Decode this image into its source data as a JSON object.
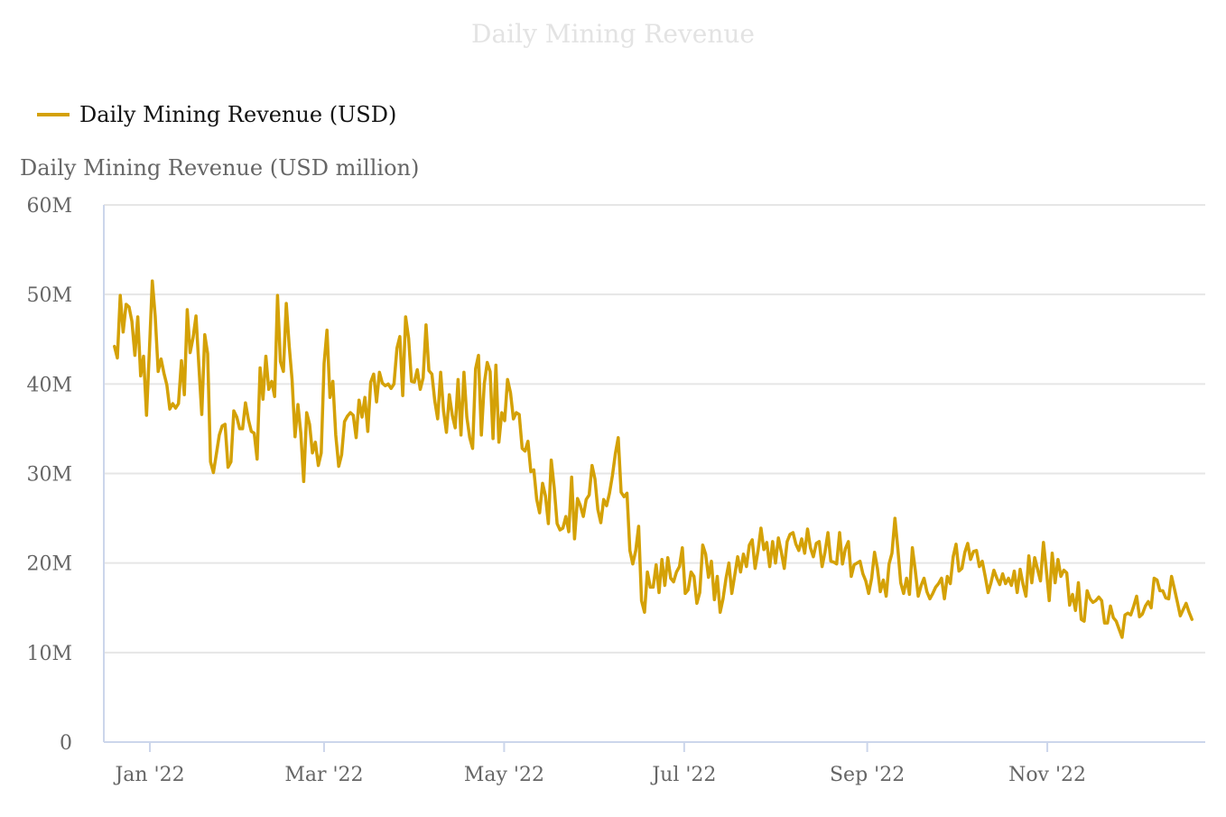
{
  "chart_data": {
    "type": "line",
    "title": "Daily Mining Revenue",
    "ylabel": "Daily Mining Revenue (USD million)",
    "xlabel": "",
    "legend": {
      "position": "top-left",
      "entries": [
        "Daily Mining Revenue (USD)"
      ]
    },
    "colors": {
      "series": "#d4a106",
      "grid": "#e6e6e6",
      "axis": "#ccd6eb"
    },
    "grid": true,
    "ylim": [
      0,
      60
    ],
    "yticks": [
      0,
      10,
      20,
      30,
      40,
      50,
      60
    ],
    "ytick_labels": [
      "0",
      "10M",
      "20M",
      "30M",
      "40M",
      "50M",
      "60M"
    ],
    "xlim_days_from_2022_01_01": [
      -15.6,
      357.5
    ],
    "xticks_days_from_2022_01_01": [
      0,
      59,
      120,
      181,
      243,
      304
    ],
    "xtick_labels": [
      "Jan '22",
      "Mar '22",
      "May '22",
      "Jul '22",
      "Sep '22",
      "Nov '22"
    ],
    "x_start": "2021-12-20",
    "x_end": "2022-12-20",
    "x_start_day": -12,
    "x_end_day": 353,
    "series": [
      {
        "name": "Daily Mining Revenue (USD)",
        "unit": "USD million",
        "values": [
          44.2,
          42.9,
          49.9,
          45.8,
          48.9,
          48.6,
          47.0,
          43.2,
          47.5,
          40.9,
          43.1,
          36.5,
          43.8,
          51.5,
          47.6,
          41.4,
          42.8,
          41.2,
          39.9,
          37.2,
          37.8,
          37.3,
          37.8,
          42.6,
          38.8,
          48.3,
          43.5,
          45.2,
          47.6,
          42.0,
          36.6,
          45.5,
          43.4,
          31.3,
          30.1,
          32.2,
          34.3,
          35.3,
          35.5,
          30.7,
          31.3,
          37.0,
          36.3,
          35.0,
          35.0,
          37.9,
          36.0,
          34.7,
          34.5,
          31.6,
          41.8,
          38.3,
          43.1,
          39.4,
          40.3,
          38.6,
          49.9,
          42.5,
          41.4,
          49.0,
          44.3,
          40.5,
          34.1,
          37.7,
          34.5,
          29.1,
          36.8,
          35.5,
          32.3,
          33.5,
          30.9,
          32.3,
          42.3,
          46.0,
          38.5,
          40.3,
          34.3,
          30.8,
          32.1,
          35.8,
          36.4,
          36.8,
          36.5,
          34.0,
          38.2,
          36.3,
          38.5,
          34.7,
          40.2,
          41.1,
          38.0,
          41.3,
          40.1,
          39.8,
          40.0,
          39.5,
          40.0,
          44.0,
          45.3,
          38.7,
          47.5,
          45.1,
          40.3,
          40.2,
          41.6,
          39.4,
          40.7,
          46.6,
          41.5,
          41.1,
          38.1,
          36.1,
          41.3,
          37.0,
          34.6,
          38.8,
          36.5,
          35.1,
          40.5,
          34.3,
          41.3,
          36.3,
          34.0,
          32.8,
          41.7,
          43.2,
          34.3,
          40.0,
          42.4,
          41.4,
          33.9,
          42.1,
          33.5,
          36.8,
          35.9,
          40.5,
          39.0,
          36.1,
          36.8,
          36.6,
          32.8,
          32.5,
          33.6,
          30.2,
          30.4,
          27.1,
          25.6,
          28.9,
          27.5,
          24.4,
          31.5,
          28.4,
          24.4,
          23.7,
          23.9,
          25.2,
          23.5,
          29.6,
          22.7,
          27.2,
          26.4,
          25.2,
          27.1,
          27.6,
          30.9,
          29.4,
          26.0,
          24.5,
          27.1,
          26.4,
          27.8,
          29.8,
          32.2,
          34.0,
          27.9,
          27.4,
          27.8,
          21.4,
          19.9,
          21.4,
          24.1,
          15.8,
          14.5,
          19.0,
          17.3,
          17.3,
          19.8,
          16.7,
          20.4,
          17.5,
          20.6,
          18.3,
          17.9,
          19.0,
          19.6,
          21.7,
          16.6,
          17.0,
          19.0,
          18.5,
          15.5,
          16.7,
          22.0,
          21.0,
          18.4,
          20.2,
          15.9,
          18.5,
          14.5,
          16.0,
          18.3,
          20.0,
          16.6,
          18.6,
          20.7,
          19.0,
          21.0,
          19.6,
          22.0,
          22.6,
          19.4,
          21.4,
          23.9,
          21.5,
          22.3,
          19.6,
          22.4,
          20.0,
          22.8,
          21.2,
          19.4,
          22.4,
          23.2,
          23.4,
          22.1,
          21.4,
          22.7,
          21.1,
          23.8,
          21.7,
          20.7,
          22.2,
          22.4,
          19.6,
          21.2,
          23.4,
          20.2,
          20.1,
          19.9,
          23.4,
          19.9,
          21.6,
          22.4,
          18.5,
          19.8,
          20.0,
          20.2,
          18.8,
          18.0,
          16.6,
          18.3,
          21.2,
          19.4,
          16.8,
          18.1,
          16.3,
          19.9,
          21.1,
          25.0,
          21.6,
          17.8,
          16.6,
          18.3,
          16.5,
          21.7,
          19.2,
          16.3,
          17.5,
          18.3,
          16.8,
          16.0,
          16.6,
          17.3,
          17.7,
          18.3,
          16.0,
          18.5,
          17.7,
          20.7,
          22.1,
          19.1,
          19.4,
          21.2,
          22.2,
          20.4,
          21.3,
          21.4,
          19.6,
          20.2,
          18.5,
          16.7,
          17.8,
          19.2,
          18.3,
          17.6,
          18.8,
          17.7,
          18.3,
          17.5,
          19.1,
          16.7,
          19.3,
          17.6,
          16.3,
          20.8,
          17.8,
          20.6,
          19.3,
          18.0,
          22.3,
          19.2,
          15.8,
          21.1,
          17.8,
          20.4,
          18.5,
          19.2,
          18.9,
          15.3,
          16.5,
          14.7,
          17.8,
          13.7,
          13.5,
          16.9,
          16.0,
          15.6,
          15.8,
          16.2,
          15.8,
          13.3,
          13.3,
          15.2,
          13.9,
          13.5,
          12.6,
          11.7,
          14.2,
          14.4,
          14.2,
          15.2,
          16.3,
          14.0,
          14.3,
          15.2,
          15.7,
          15.0,
          18.3,
          18.1,
          16.9,
          16.9,
          16.1,
          16.0,
          18.5,
          17.1,
          15.6,
          14.1,
          14.8,
          15.5,
          14.5,
          13.7
        ]
      }
    ]
  }
}
